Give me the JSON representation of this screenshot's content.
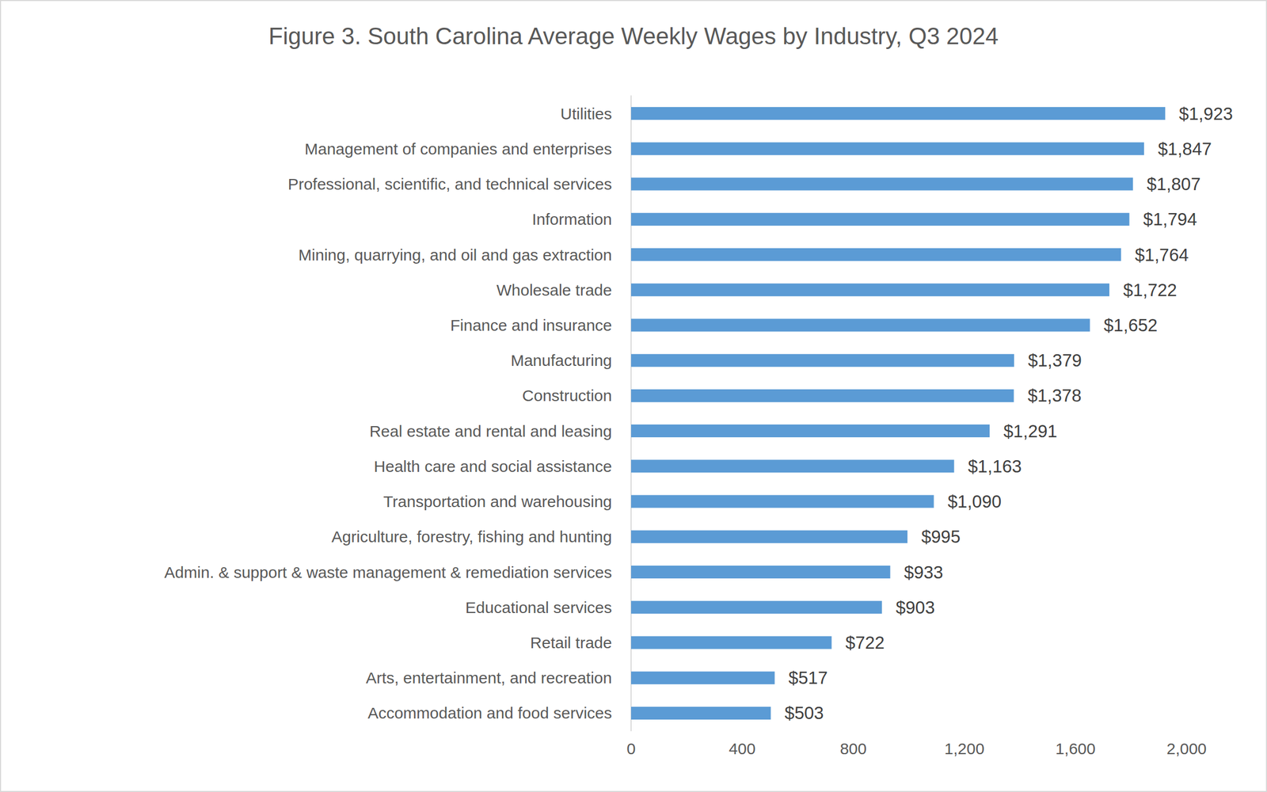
{
  "chart_data": {
    "type": "bar",
    "orientation": "horizontal",
    "title": "Figure 3. South Carolina Average Weekly Wages by Industry, Q3 2024",
    "categories": [
      "Utilities",
      "Management of companies and enterprises",
      "Professional, scientific, and technical services",
      "Information",
      "Mining, quarrying, and oil and gas extraction",
      "Wholesale trade",
      "Finance and insurance",
      "Manufacturing",
      "Construction",
      "Real estate and rental and leasing",
      "Health care and social assistance",
      "Transportation and warehousing",
      "Agriculture, forestry, fishing and hunting",
      "Admin. & support & waste management & remediation services",
      "Educational services",
      "Retail trade",
      "Arts, entertainment, and recreation",
      "Accommodation and food services"
    ],
    "values": [
      1923,
      1847,
      1807,
      1794,
      1764,
      1722,
      1652,
      1379,
      1378,
      1291,
      1163,
      1090,
      995,
      933,
      903,
      722,
      517,
      503
    ],
    "value_labels": [
      "$1,923",
      "$1,847",
      "$1,807",
      "$1,794",
      "$1,764",
      "$1,722",
      "$1,652",
      "$1,379",
      "$1,378",
      "$1,291",
      "$1,163",
      "$1,090",
      "$995",
      "$933",
      "$903",
      "$722",
      "$517",
      "$503"
    ],
    "data_labels": true,
    "color": "#5b9bd5",
    "xlim": [
      0,
      2000
    ],
    "xticks": [
      0,
      400,
      800,
      1200,
      1600,
      2000
    ],
    "grid": false
  }
}
